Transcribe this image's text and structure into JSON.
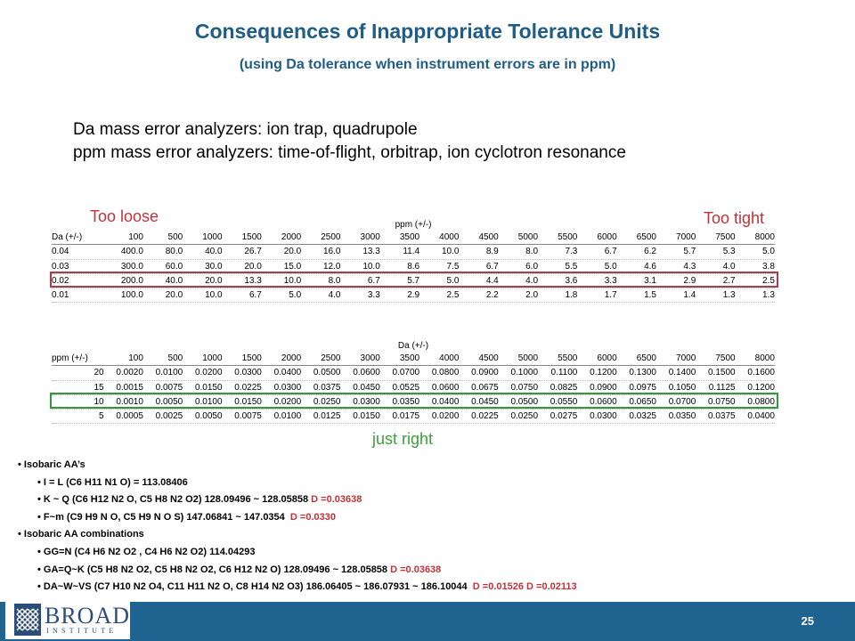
{
  "title": "Consequences of Inappropriate Tolerance Units",
  "subtitle": "(using Da tolerance when instrument errors are in ppm)",
  "intro": {
    "line1": "Da mass error analyzers: ion trap, quadrupole",
    "line2": "ppm mass error analyzers: time-of-flight, orbitrap, ion cyclotron resonance"
  },
  "labels": {
    "too_loose": "Too loose",
    "too_tight": "Too tight",
    "just_right": "just right"
  },
  "table1": {
    "unit": "ppm (+/-)",
    "row_header": "Da (+/-)",
    "columns": [
      "100",
      "500",
      "1000",
      "1500",
      "2000",
      "2500",
      "3000",
      "3500",
      "4000",
      "4500",
      "5000",
      "5500",
      "6000",
      "6500",
      "7000",
      "7500",
      "8000"
    ],
    "rows": [
      {
        "label": "0.04",
        "cells": [
          "400.0",
          "80.0",
          "40.0",
          "26.7",
          "20.0",
          "16.0",
          "13.3",
          "11.4",
          "10.0",
          "8.9",
          "8.0",
          "7.3",
          "6.7",
          "6.2",
          "5.7",
          "5.3",
          "5.0"
        ]
      },
      {
        "label": "0.03",
        "cells": [
          "300.0",
          "60.0",
          "30.0",
          "20.0",
          "15.0",
          "12.0",
          "10.0",
          "8.6",
          "7.5",
          "6.7",
          "6.0",
          "5.5",
          "5.0",
          "4.6",
          "4.3",
          "4.0",
          "3.8"
        ]
      },
      {
        "label": "0.02",
        "cells": [
          "200.0",
          "40.0",
          "20.0",
          "13.3",
          "10.0",
          "8.0",
          "6.7",
          "5.7",
          "5.0",
          "4.4",
          "4.0",
          "3.6",
          "3.3",
          "3.1",
          "2.9",
          "2.7",
          "2.5"
        ]
      },
      {
        "label": "0.01",
        "cells": [
          "100.0",
          "20.0",
          "10.0",
          "6.7",
          "5.0",
          "4.0",
          "3.3",
          "2.9",
          "2.5",
          "2.2",
          "2.0",
          "1.8",
          "1.7",
          "1.5",
          "1.4",
          "1.3",
          "1.3"
        ]
      }
    ]
  },
  "table2": {
    "unit": "Da (+/-)",
    "row_header": "ppm (+/-)",
    "columns": [
      "100",
      "500",
      "1000",
      "1500",
      "2000",
      "2500",
      "3000",
      "3500",
      "4000",
      "4500",
      "5000",
      "5500",
      "6000",
      "6500",
      "7000",
      "7500",
      "8000"
    ],
    "rows": [
      {
        "label": "20",
        "cells": [
          "0.0020",
          "0.0100",
          "0.0200",
          "0.0300",
          "0.0400",
          "0.0500",
          "0.0600",
          "0.0700",
          "0.0800",
          "0.0900",
          "0.1000",
          "0.1100",
          "0.1200",
          "0.1300",
          "0.1400",
          "0.1500",
          "0.1600"
        ]
      },
      {
        "label": "15",
        "cells": [
          "0.0015",
          "0.0075",
          "0.0150",
          "0.0225",
          "0.0300",
          "0.0375",
          "0.0450",
          "0.0525",
          "0.0600",
          "0.0675",
          "0.0750",
          "0.0825",
          "0.0900",
          "0.0975",
          "0.1050",
          "0.1125",
          "0.1200"
        ]
      },
      {
        "label": "10",
        "cells": [
          "0.0010",
          "0.0050",
          "0.0100",
          "0.0150",
          "0.0200",
          "0.0250",
          "0.0300",
          "0.0350",
          "0.0400",
          "0.0450",
          "0.0500",
          "0.0550",
          "0.0600",
          "0.0650",
          "0.0700",
          "0.0750",
          "0.0800"
        ]
      },
      {
        "label": "5",
        "cells": [
          "0.0005",
          "0.0025",
          "0.0050",
          "0.0075",
          "0.0100",
          "0.0125",
          "0.0150",
          "0.0175",
          "0.0200",
          "0.0225",
          "0.0250",
          "0.0275",
          "0.0300",
          "0.0325",
          "0.0350",
          "0.0375",
          "0.0400"
        ]
      }
    ]
  },
  "bullets": [
    {
      "level": 1,
      "text": "Isobaric AA’s",
      "delta": ""
    },
    {
      "level": 2,
      "text": "I = L (C6 H11 N1 O) = 113.08406",
      "delta": ""
    },
    {
      "level": 2,
      "text": "K ~ Q (C6 H12 N2 O, C5 H8 N2 O2) 128.09496 ~ 128.05858 ",
      "delta": "D =0.03638"
    },
    {
      "level": 2,
      "text": "F~m (C9 H9 N O, C5 H9 N O S) 147.06841 ~ 147.0354  ",
      "delta": "D =0.0330"
    },
    {
      "level": 1,
      "text": "Isobaric AA combinations",
      "delta": ""
    },
    {
      "level": 2,
      "text": "GG=N (C4 H6 N2 O2 , C4 H6 N2 O2) 114.04293",
      "delta": ""
    },
    {
      "level": 2,
      "text": "GA=Q~K (C5 H8 N2 O2, C5 H8 N2 O2, C6 H12 N2 O) 128.09496 ~ 128.05858 ",
      "delta": "D =0.03638"
    },
    {
      "level": 2,
      "text": "DA~W~VS (C7 H10 N2 O4, C11 H11 N2 O, C8 H14 N2 O3) 186.06405 ~ 186.07931 ~ 186.10044  ",
      "delta": "D =0.01526 D =0.02113"
    }
  ],
  "footer": {
    "logo_text": "BROAD",
    "logo_sub": "INSTITUTE",
    "page_number": "25"
  },
  "colors": {
    "title": "#1f5d86",
    "footer": "#1f6391",
    "highlight_red": "#b03a4a",
    "highlight_green": "#2e9a3a",
    "label_red": "#c0333a",
    "label_green": "#3aa13a"
  }
}
